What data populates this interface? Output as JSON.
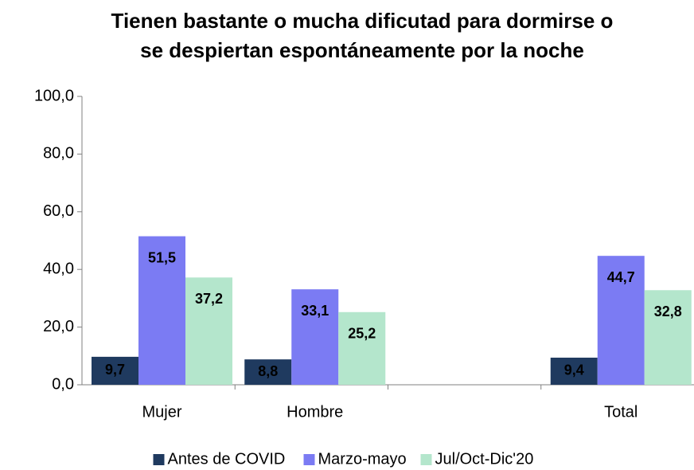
{
  "chart_data": {
    "type": "bar",
    "title": [
      "Tienen bastante o mucha dificutad para dormirse o",
      "se despiertan espontáneamente por la noche"
    ],
    "categories": [
      "Mujer",
      "Hombre",
      null,
      "Total"
    ],
    "series": [
      {
        "name": "Antes de COVID",
        "color": "#1f3a5f",
        "values": [
          9.7,
          8.8,
          null,
          9.4
        ],
        "value_labels": [
          "9,7",
          "8,8",
          null,
          "9,4"
        ]
      },
      {
        "name": "Marzo-mayo",
        "color": "#7b7bf3",
        "values": [
          51.5,
          33.1,
          null,
          44.7
        ],
        "value_labels": [
          "51,5",
          "33,1",
          null,
          "44,7"
        ]
      },
      {
        "name": "Jul/Oct-Dic'20",
        "color": "#b4e6cc",
        "values": [
          37.2,
          25.2,
          null,
          32.8
        ],
        "value_labels": [
          "37,2",
          "25,2",
          null,
          "32,8"
        ]
      }
    ],
    "ylim": [
      0,
      100
    ],
    "yticks": [
      {
        "value": 0,
        "label": "0,0"
      },
      {
        "value": 20,
        "label": "20,0"
      },
      {
        "value": 40,
        "label": "40,0"
      },
      {
        "value": 60,
        "label": "60,0"
      },
      {
        "value": 80,
        "label": "80,0"
      },
      {
        "value": 100,
        "label": "100,0"
      }
    ],
    "grid": false,
    "legend": "bottom"
  }
}
